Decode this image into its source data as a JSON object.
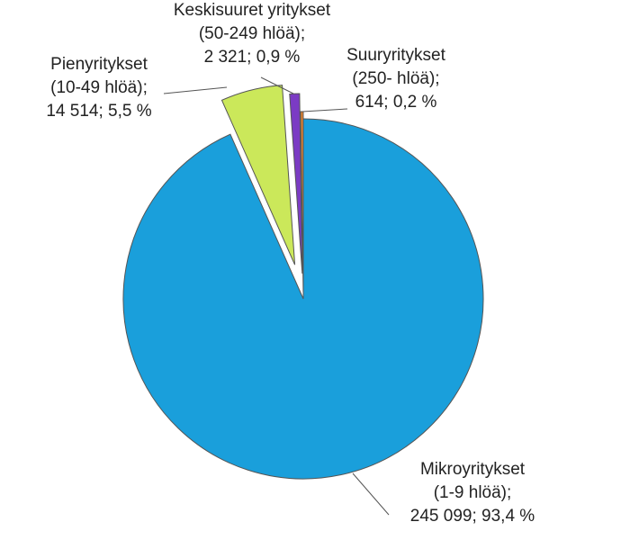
{
  "chart_data": {
    "type": "pie",
    "categories": [
      "Mikroyritykset",
      "Pienyritykset",
      "Keskisuuret yritykset",
      "Suuryritykset"
    ],
    "size_classes": [
      "(1-9 hlöä);",
      "(10-49 hlöä);",
      "(50-249 hlöä);",
      "(250- hlöä);"
    ],
    "values": [
      245099,
      14514,
      2321,
      614
    ],
    "value_labels": [
      "245 099; 93,4 %",
      "14 514; 5,5 %",
      "2 321; 0,9 %",
      "614; 0,2 %"
    ],
    "colors": [
      "#1a9fdb",
      "#cbe85a",
      "#7b3bc4",
      "#f0862a"
    ]
  }
}
